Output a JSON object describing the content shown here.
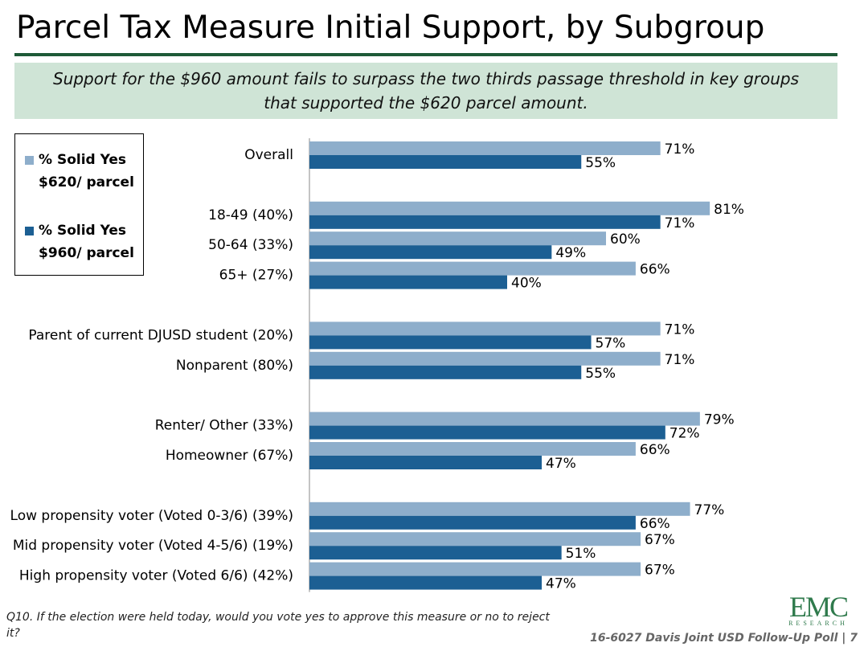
{
  "chart_data": {
    "type": "hbar",
    "title": "Parcel Tax Measure Initial Support, by Subgroup",
    "subtitle": "Support for the $960 amount fails to surpass the two thirds passage threshold in key groups that supported the $620 parcel amount.",
    "categories": [
      "Overall",
      null,
      "18-49 (40%)",
      "50-64 (33%)",
      "65+ (27%)",
      null,
      "Parent of current DJUSD student (20%)",
      "Nonparent (80%)",
      null,
      "Renter/ Other (33%)",
      "Homeowner (67%)",
      null,
      "Low propensity voter (Voted 0-3/6) (39%)",
      "Mid propensity voter (Voted 4-5/6) (19%)",
      "High propensity voter (Voted 6/6)  (42%)"
    ],
    "series": [
      {
        "name": "% Solid Yes $620/ parcel",
        "color": "#8eaecb",
        "values": [
          71,
          null,
          81,
          60,
          66,
          null,
          71,
          71,
          null,
          79,
          66,
          null,
          77,
          67,
          67
        ],
        "value_labels": [
          "71%",
          null,
          "81%",
          "60%",
          "66%",
          null,
          "71%",
          "71%",
          null,
          "79%",
          "66%",
          null,
          "77%",
          "67%",
          "67%"
        ]
      },
      {
        "name": "% Solid Yes $960/ parcel",
        "color": "#1c5f93",
        "values": [
          55,
          null,
          71,
          49,
          40,
          null,
          57,
          55,
          null,
          72,
          47,
          null,
          66,
          51,
          47
        ],
        "value_labels": [
          "55%",
          null,
          "71%",
          "49%",
          "40%",
          null,
          "57%",
          "55%",
          null,
          "72%",
          "47%",
          null,
          "66%",
          "51%",
          "47%"
        ]
      }
    ],
    "xlim": [
      0,
      100
    ],
    "grid": false,
    "legend": "left",
    "footnote": "Q10. If the election were held today, would you vote yes to approve this measure or no to reject it?",
    "footer": "16-6027 Davis Joint USD Follow-Up Poll",
    "page_number": "7",
    "logo": "EMC",
    "logo_sub": "RESEARCH"
  }
}
